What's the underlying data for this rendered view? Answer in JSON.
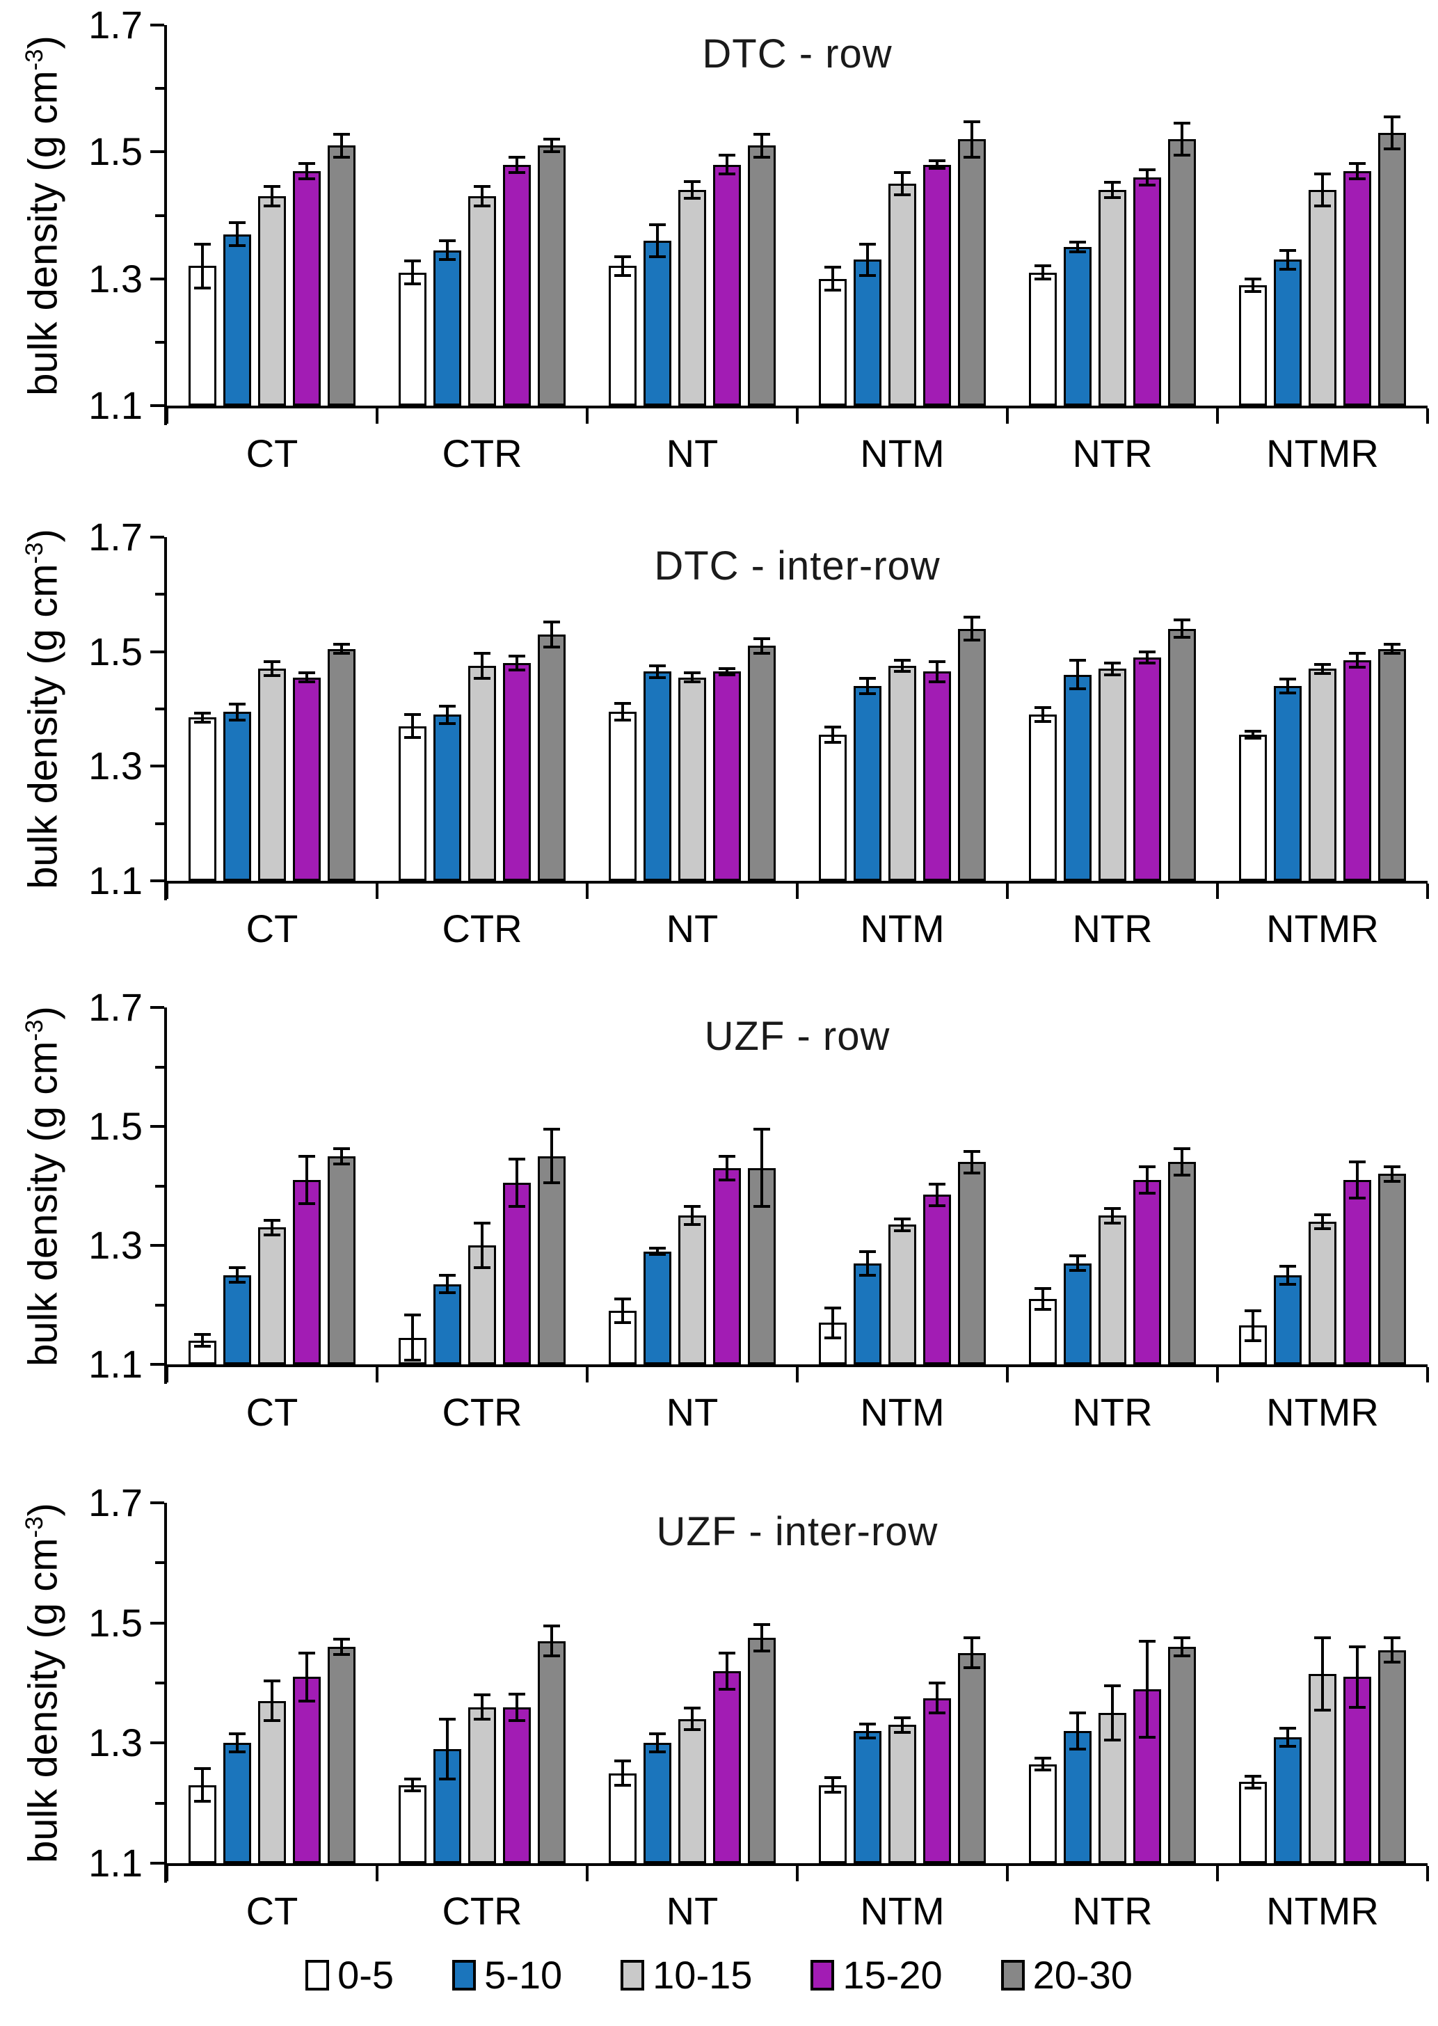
{
  "figure": {
    "ylabel_pre": "bulk density (g cm",
    "ylabel_sup": "-3",
    "ylabel_post": ")",
    "y_tick_labels": [
      "1.1",
      "1.3",
      "1.5",
      "1.7"
    ],
    "y_ticks": [
      1.1,
      1.3,
      1.5,
      1.7
    ],
    "y_minor_ticks": [
      1.2,
      1.4,
      1.6
    ],
    "ylim": [
      1.1,
      1.7
    ],
    "categories": [
      "CT",
      "CTR",
      "NT",
      "NTM",
      "NTR",
      "NTMR"
    ],
    "colors": {
      "depth_0_5": "#FFFFFF",
      "depth_5_10": "#1B75BC",
      "depth_10_15": "#C9C9C9",
      "depth_15_20": "#A21CB4",
      "depth_20_30": "#878787",
      "bar_border": "#000000",
      "text": "#000000",
      "background": "#FFFFFF"
    },
    "legend": [
      {
        "label": "0-5",
        "color": "#FFFFFF"
      },
      {
        "label": "5-10",
        "color": "#1B75BC"
      },
      {
        "label": "10-15",
        "color": "#C9C9C9"
      },
      {
        "label": "15-20",
        "color": "#A21CB4"
      },
      {
        "label": "20-30",
        "color": "#878787"
      }
    ]
  },
  "chart_data": [
    {
      "type": "bar",
      "title": "DTC - row",
      "xlabel": "",
      "ylabel": "bulk density (g cm-3)",
      "ylim": [
        1.1,
        1.7
      ],
      "grid": false,
      "legend_position": "bottom-of-figure",
      "categories": [
        "CT",
        "CTR",
        "NT",
        "NTM",
        "NTR",
        "NTMR"
      ],
      "series": [
        {
          "name": "0-5",
          "color": "#FFFFFF",
          "values": [
            1.32,
            1.31,
            1.32,
            1.3,
            1.31,
            1.29
          ],
          "errors": [
            0.035,
            0.018,
            0.015,
            0.018,
            0.01,
            0.01
          ]
        },
        {
          "name": "5-10",
          "color": "#1B75BC",
          "values": [
            1.37,
            1.345,
            1.36,
            1.33,
            1.35,
            1.33
          ],
          "errors": [
            0.018,
            0.015,
            0.025,
            0.025,
            0.008,
            0.015
          ]
        },
        {
          "name": "10-15",
          "color": "#C9C9C9",
          "values": [
            1.43,
            1.43,
            1.44,
            1.45,
            1.44,
            1.44
          ],
          "errors": [
            0.015,
            0.015,
            0.013,
            0.018,
            0.012,
            0.025
          ]
        },
        {
          "name": "15-20",
          "color": "#A21CB4",
          "values": [
            1.47,
            1.48,
            1.48,
            1.48,
            1.46,
            1.47
          ],
          "errors": [
            0.012,
            0.012,
            0.015,
            0.006,
            0.012,
            0.012
          ]
        },
        {
          "name": "20-30",
          "color": "#878787",
          "values": [
            1.51,
            1.51,
            1.51,
            1.52,
            1.52,
            1.53
          ],
          "errors": [
            0.018,
            0.01,
            0.018,
            0.028,
            0.025,
            0.025
          ]
        }
      ]
    },
    {
      "type": "bar",
      "title": "DTC - inter-row",
      "xlabel": "",
      "ylabel": "bulk density (g cm-3)",
      "ylim": [
        1.1,
        1.7
      ],
      "grid": false,
      "legend_position": "bottom-of-figure",
      "categories": [
        "CT",
        "CTR",
        "NT",
        "NTM",
        "NTR",
        "NTMR"
      ],
      "series": [
        {
          "name": "0-5",
          "color": "#FFFFFF",
          "values": [
            1.385,
            1.37,
            1.395,
            1.355,
            1.39,
            1.355
          ],
          "errors": [
            0.008,
            0.02,
            0.015,
            0.013,
            0.012,
            0.006
          ]
        },
        {
          "name": "5-10",
          "color": "#1B75BC",
          "values": [
            1.395,
            1.39,
            1.465,
            1.44,
            1.46,
            1.44
          ],
          "errors": [
            0.014,
            0.015,
            0.01,
            0.013,
            0.025,
            0.012
          ]
        },
        {
          "name": "10-15",
          "color": "#C9C9C9",
          "values": [
            1.47,
            1.475,
            1.455,
            1.475,
            1.47,
            1.47
          ],
          "errors": [
            0.012,
            0.022,
            0.008,
            0.01,
            0.01,
            0.008
          ]
        },
        {
          "name": "15-20",
          "color": "#A21CB4",
          "values": [
            1.455,
            1.48,
            1.465,
            1.465,
            1.49,
            1.485
          ],
          "errors": [
            0.008,
            0.012,
            0.006,
            0.018,
            0.01,
            0.012
          ]
        },
        {
          "name": "20-30",
          "color": "#878787",
          "values": [
            1.505,
            1.53,
            1.51,
            1.54,
            1.54,
            1.505
          ],
          "errors": [
            0.008,
            0.022,
            0.013,
            0.02,
            0.015,
            0.008
          ]
        }
      ]
    },
    {
      "type": "bar",
      "title": "UZF - row",
      "xlabel": "",
      "ylabel": "bulk density (g cm-3)",
      "ylim": [
        1.1,
        1.7
      ],
      "grid": false,
      "legend_position": "bottom-of-figure",
      "categories": [
        "CT",
        "CTR",
        "NT",
        "NTM",
        "NTR",
        "NTMR"
      ],
      "series": [
        {
          "name": "0-5",
          "color": "#FFFFFF",
          "values": [
            1.14,
            1.145,
            1.19,
            1.17,
            1.21,
            1.165
          ],
          "errors": [
            0.01,
            0.038,
            0.02,
            0.025,
            0.018,
            0.025
          ]
        },
        {
          "name": "5-10",
          "color": "#1B75BC",
          "values": [
            1.25,
            1.235,
            1.29,
            1.27,
            1.27,
            1.25
          ],
          "errors": [
            0.012,
            0.015,
            0.005,
            0.02,
            0.012,
            0.015
          ]
        },
        {
          "name": "10-15",
          "color": "#C9C9C9",
          "values": [
            1.33,
            1.3,
            1.35,
            1.335,
            1.35,
            1.34
          ],
          "errors": [
            0.012,
            0.038,
            0.015,
            0.01,
            0.012,
            0.012
          ]
        },
        {
          "name": "15-20",
          "color": "#A21CB4",
          "values": [
            1.41,
            1.405,
            1.43,
            1.385,
            1.41,
            1.41
          ],
          "errors": [
            0.04,
            0.04,
            0.02,
            0.018,
            0.022,
            0.03
          ]
        },
        {
          "name": "20-30",
          "color": "#878787",
          "values": [
            1.45,
            1.45,
            1.43,
            1.44,
            1.44,
            1.42
          ],
          "errors": [
            0.013,
            0.045,
            0.065,
            0.018,
            0.022,
            0.012
          ]
        }
      ]
    },
    {
      "type": "bar",
      "title": "UZF - inter-row",
      "xlabel": "",
      "ylabel": "bulk density (g cm-3)",
      "ylim": [
        1.1,
        1.7
      ],
      "grid": false,
      "legend_position": "bottom-of-figure",
      "categories": [
        "CT",
        "CTR",
        "NT",
        "NTM",
        "NTR",
        "NTMR"
      ],
      "series": [
        {
          "name": "0-5",
          "color": "#FFFFFF",
          "values": [
            1.23,
            1.23,
            1.25,
            1.23,
            1.265,
            1.235
          ],
          "errors": [
            0.027,
            0.01,
            0.02,
            0.012,
            0.01,
            0.01
          ]
        },
        {
          "name": "5-10",
          "color": "#1B75BC",
          "values": [
            1.3,
            1.29,
            1.3,
            1.32,
            1.32,
            1.31
          ],
          "errors": [
            0.015,
            0.05,
            0.015,
            0.012,
            0.03,
            0.015
          ]
        },
        {
          "name": "10-15",
          "color": "#C9C9C9",
          "values": [
            1.37,
            1.36,
            1.34,
            1.33,
            1.35,
            1.415
          ],
          "errors": [
            0.033,
            0.02,
            0.018,
            0.012,
            0.045,
            0.06
          ]
        },
        {
          "name": "15-20",
          "color": "#A21CB4",
          "values": [
            1.41,
            1.36,
            1.42,
            1.375,
            1.39,
            1.41
          ],
          "errors": [
            0.04,
            0.022,
            0.03,
            0.025,
            0.08,
            0.05
          ]
        },
        {
          "name": "20-30",
          "color": "#878787",
          "values": [
            1.46,
            1.47,
            1.475,
            1.45,
            1.46,
            1.455
          ],
          "errors": [
            0.013,
            0.025,
            0.022,
            0.025,
            0.015,
            0.02
          ]
        }
      ]
    }
  ]
}
